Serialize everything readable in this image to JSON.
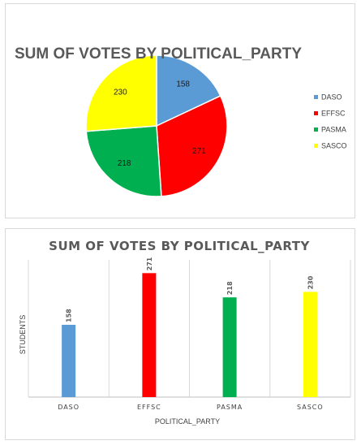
{
  "chart_data": [
    {
      "type": "pie",
      "title": "SUM OF VOTES BY POLITICAL_PARTY",
      "categories": [
        "DASO",
        "EFFSC",
        "PASMA",
        "SASCO"
      ],
      "values": [
        158,
        271,
        218,
        230
      ],
      "colors": [
        "#5b9bd5",
        "#ff0000",
        "#00b050",
        "#ffff00"
      ],
      "legend": "right"
    },
    {
      "type": "bar",
      "title": "SUM OF VOTES BY POLITICAL_PARTY",
      "categories": [
        "DASO",
        "EFFSC",
        "PASMA",
        "SASCO"
      ],
      "values": [
        158,
        271,
        218,
        230
      ],
      "colors": [
        "#5b9bd5",
        "#ff0000",
        "#00b050",
        "#ffff00"
      ],
      "xlabel": "POLITICAL_PARTY",
      "ylabel": "STUDENTS",
      "ylim": [
        0,
        300
      ],
      "grid": "vertical-category-separators"
    }
  ]
}
